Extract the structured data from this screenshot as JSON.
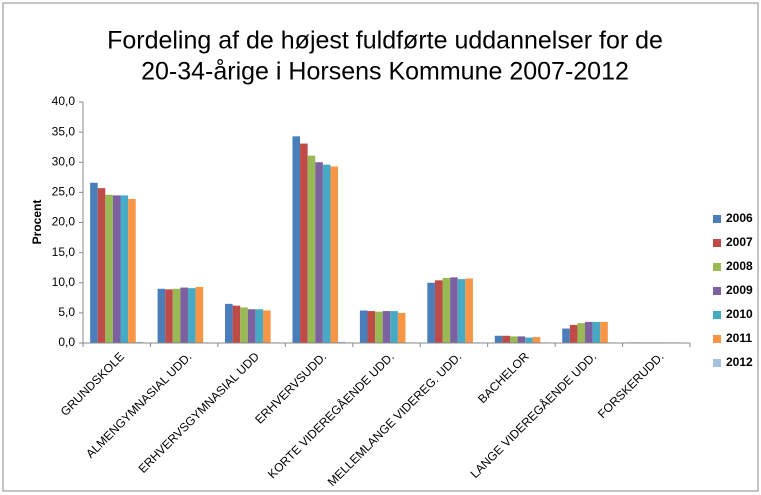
{
  "chart_data": {
    "type": "bar",
    "title": [
      "Fordeling af de højest fuldførte uddannelser for de",
      "20-34-årige i Horsens Kommune 2007-2012"
    ],
    "y_label": "Procent",
    "categories": [
      "GRUNDSKOLE",
      "ALMENGYMNASIAL UDD.",
      "ERHVERVSGYMNASIAL UDD",
      "ERHVERVSUDD.",
      "KORTE VIDEREGÅENDE UDD.",
      "MELLEMLANGE VIDEREG. UDD.",
      "BACHELOR",
      "LANGE VIDEREGÅENDE UDD.",
      "FORSKERUDD."
    ],
    "series": [
      {
        "name": "2006",
        "color": "#4a7ebb",
        "values": [
          26.6,
          9.0,
          6.5,
          34.3,
          5.4,
          10.0,
          1.2,
          2.4,
          0.1
        ]
      },
      {
        "name": "2007",
        "color": "#be4b48",
        "values": [
          25.7,
          8.9,
          6.2,
          33.1,
          5.3,
          10.4,
          1.2,
          3.0,
          0.1
        ]
      },
      {
        "name": "2008",
        "color": "#98b954",
        "values": [
          24.6,
          9.0,
          5.9,
          31.1,
          5.2,
          10.8,
          1.1,
          3.3,
          0.1
        ]
      },
      {
        "name": "2009",
        "color": "#7d60a0",
        "values": [
          24.5,
          9.2,
          5.6,
          30.0,
          5.3,
          10.9,
          1.1,
          3.5,
          0.1
        ]
      },
      {
        "name": "2010",
        "color": "#46aac5",
        "values": [
          24.5,
          9.1,
          5.6,
          29.6,
          5.3,
          10.6,
          0.9,
          3.5,
          0.1
        ]
      },
      {
        "name": "2011",
        "color": "#f79646",
        "values": [
          23.9,
          9.3,
          5.4,
          29.3,
          5.0,
          10.7,
          1.0,
          3.5,
          0.1
        ]
      },
      {
        "name": "2012",
        "color": "#a7c0de",
        "values": [
          0.2,
          0.1,
          0.1,
          0.2,
          0.1,
          0.1,
          0.1,
          0.1,
          0.1
        ]
      }
    ],
    "ylim": [
      0,
      40
    ],
    "yticks": [
      {
        "value": 0,
        "label": "0,0"
      },
      {
        "value": 5,
        "label": "5,0"
      },
      {
        "value": 10,
        "label": "10,0"
      },
      {
        "value": 15,
        "label": "15,0"
      },
      {
        "value": 20,
        "label": "20,0"
      },
      {
        "value": 25,
        "label": "25,0"
      },
      {
        "value": 30,
        "label": "30,0"
      },
      {
        "value": 35,
        "label": "35,0"
      },
      {
        "value": 40,
        "label": "40,0"
      }
    ],
    "legend": "right"
  }
}
